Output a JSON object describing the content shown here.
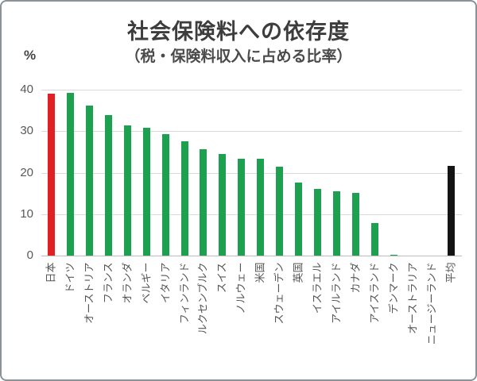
{
  "card": {
    "title": "社会保険料への依存度",
    "subtitle": "（税・保険料収入に占める比率）",
    "y_axis_unit": "%"
  },
  "chart_data": {
    "type": "bar",
    "title": "社会保険料への依存度",
    "subtitle": "（税・保険料収入に占める比率）",
    "ylabel": "%",
    "xlabel": "",
    "ylim": [
      0,
      40
    ],
    "y_ticks": [
      0,
      10,
      20,
      30,
      40
    ],
    "grid": "horizontal",
    "legend": "none",
    "categories": [
      "日本",
      "ドイツ",
      "オーストリア",
      "フランス",
      "オランダ",
      "ベルギー",
      "イタリア",
      "フィンランド",
      "ルクセンブルク",
      "スイス",
      "ノルウェー",
      "米国",
      "スウェーデン",
      "英国",
      "イスラエル",
      "アイルランド",
      "カナダ",
      "アイスランド",
      "デンマーク",
      "オーストラリア",
      "ニュージーランド",
      "平均"
    ],
    "values": [
      39.1,
      39.3,
      36.1,
      33.9,
      31.3,
      30.9,
      29.3,
      27.6,
      25.7,
      24.5,
      23.3,
      23.4,
      21.5,
      17.6,
      16.0,
      15.5,
      15.1,
      7.9,
      0.2,
      0.0,
      0.0,
      21.7
    ],
    "default_color": "#1da150",
    "highlight_colors": {
      "日本": "#e02022",
      "平均": "#141414"
    },
    "colors_meta": {
      "gridline": "#d9d9d9",
      "baseline": "#bcbcbc",
      "axis_text": "#595959",
      "title_text": "#3d3d3d"
    }
  }
}
